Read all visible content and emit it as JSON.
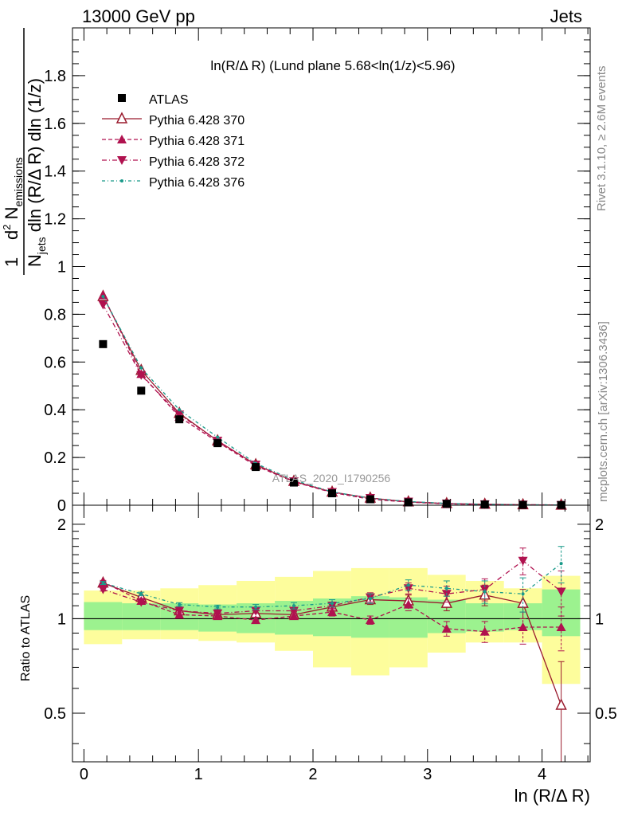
{
  "header": {
    "left": "13000 GeV pp",
    "right": "Jets"
  },
  "side_labels": {
    "rivet": "Rivet 3.1.10, ≥ 2.6M events",
    "mcplots": "mcplots.cern.ch [arXiv:1306.3436]"
  },
  "watermark": "ATLAS_2020_I1790256",
  "colors": {
    "atlas": "#000000",
    "p370": "#9a1b2e",
    "p371": "#b0124f",
    "p372": "#b0124f",
    "p376": "#1a9a8a",
    "band_outer": "#fdfd9c",
    "band_inner": "#9cf28f"
  },
  "chart_data": [
    {
      "type": "scatter",
      "panel": "main",
      "title": "ln(R/Δ R) (Lund plane 5.68<ln(1/z)<5.96)",
      "ylabel": "1/N_jets d² N_emissions / dln (R/Δ R) dln (1/z)",
      "xlim": [
        -0.1,
        4.42
      ],
      "ylim": [
        0,
        2.0
      ],
      "yticks": [
        0,
        0.2,
        0.4,
        0.6,
        0.8,
        1,
        1.2,
        1.4,
        1.6,
        1.8
      ],
      "ytick_labels": [
        "0",
        "0.2",
        "0.4",
        "0.6",
        "0.8",
        "1",
        "1.2",
        "1.4",
        "1.6",
        "1.8"
      ],
      "x": [
        0.167,
        0.5,
        0.833,
        1.167,
        1.5,
        1.833,
        2.167,
        2.5,
        2.833,
        3.167,
        3.5,
        3.833,
        4.167
      ],
      "legend_position": "top-left",
      "series": [
        {
          "name": "ATLAS",
          "marker": "square",
          "values": [
            0.675,
            0.48,
            0.36,
            0.26,
            0.16,
            0.095,
            0.05,
            0.025,
            0.012,
            0.006,
            0.003,
            0.0015,
            0.0008
          ]
        },
        {
          "name": "Pythia 6.428 370",
          "marker": "triangle-up-open",
          "line": "solid",
          "values": [
            0.875,
            0.565,
            0.385,
            0.27,
            0.17,
            0.1,
            0.055,
            0.03,
            0.014,
            0.007,
            0.004,
            0.002,
            0.0005
          ]
        },
        {
          "name": "Pythia 6.428 371",
          "marker": "triangle-up",
          "line": "dashed",
          "values": [
            0.88,
            0.55,
            0.37,
            0.265,
            0.165,
            0.098,
            0.053,
            0.025,
            0.013,
            0.0056,
            0.0027,
            0.0014,
            0.0008
          ]
        },
        {
          "name": "Pythia 6.428 372",
          "marker": "triangle-down",
          "line": "dashdot",
          "values": [
            0.84,
            0.545,
            0.38,
            0.27,
            0.17,
            0.1,
            0.055,
            0.03,
            0.015,
            0.0072,
            0.0037,
            0.0023,
            0.001
          ]
        },
        {
          "name": "Pythia 6.428 376",
          "marker": "dot",
          "line": "dashdotted",
          "values": [
            0.875,
            0.575,
            0.4,
            0.285,
            0.175,
            0.105,
            0.056,
            0.029,
            0.0155,
            0.0075,
            0.0037,
            0.0018,
            0.0012
          ]
        }
      ]
    },
    {
      "type": "scatter",
      "panel": "ratio",
      "ylabel": "Ratio to ATLAS",
      "xlabel": "ln (R/Δ R)",
      "xlim": [
        -0.1,
        4.42
      ],
      "ylim": [
        0.35,
        2.3
      ],
      "yticks": [
        0.5,
        1,
        2
      ],
      "ytick_labels": [
        "0.5",
        "1",
        "2"
      ],
      "xticks": [
        0,
        1,
        2,
        3,
        4
      ],
      "xtick_labels": [
        "0",
        "1",
        "2",
        "3",
        "4"
      ],
      "x": [
        0.167,
        0.5,
        0.833,
        1.167,
        1.5,
        1.833,
        2.167,
        2.5,
        2.833,
        3.167,
        3.5,
        3.833,
        4.167
      ],
      "bin_edges": [
        0,
        0.333,
        0.667,
        1.0,
        1.333,
        1.667,
        2.0,
        2.333,
        2.667,
        3.0,
        3.333,
        3.667,
        4.0,
        4.333
      ],
      "bands": {
        "inner": [
          [
            0.92,
            1.13
          ],
          [
            0.92,
            1.12
          ],
          [
            0.92,
            1.12
          ],
          [
            0.91,
            1.11
          ],
          [
            0.9,
            1.12
          ],
          [
            0.89,
            1.14
          ],
          [
            0.88,
            1.16
          ],
          [
            0.87,
            1.18
          ],
          [
            0.87,
            1.17
          ],
          [
            0.9,
            1.15
          ],
          [
            0.91,
            1.12
          ],
          [
            0.92,
            1.12
          ],
          [
            0.88,
            1.24
          ]
        ],
        "outer": [
          [
            0.83,
            1.23
          ],
          [
            0.86,
            1.23
          ],
          [
            0.86,
            1.25
          ],
          [
            0.85,
            1.28
          ],
          [
            0.84,
            1.32
          ],
          [
            0.79,
            1.36
          ],
          [
            0.7,
            1.42
          ],
          [
            0.66,
            1.45
          ],
          [
            0.7,
            1.45
          ],
          [
            0.78,
            1.38
          ],
          [
            0.84,
            1.32
          ],
          [
            0.84,
            1.25
          ],
          [
            0.62,
            1.37
          ]
        ]
      },
      "series": [
        {
          "name": "Pythia 6.428 370",
          "values": [
            1.3,
            1.17,
            1.06,
            1.03,
            1.04,
            1.03,
            1.09,
            1.15,
            1.14,
            1.12,
            1.19,
            1.12,
            0.53
          ],
          "errors": [
            0.015,
            0.015,
            0.015,
            0.015,
            0.02,
            0.025,
            0.03,
            0.04,
            0.05,
            0.06,
            0.09,
            0.12,
            0.2
          ]
        },
        {
          "name": "Pythia 6.428 371",
          "values": [
            1.31,
            1.14,
            1.03,
            1.02,
            0.99,
            1.02,
            1.05,
            0.99,
            1.11,
            0.93,
            0.91,
            0.94,
            0.94
          ],
          "errors": [
            0.015,
            0.015,
            0.015,
            0.015,
            0.02,
            0.025,
            0.03,
            0.03,
            0.05,
            0.05,
            0.07,
            0.11,
            0.15
          ]
        },
        {
          "name": "Pythia 6.428 372",
          "values": [
            1.24,
            1.13,
            1.06,
            1.04,
            1.06,
            1.06,
            1.1,
            1.17,
            1.25,
            1.2,
            1.24,
            1.53,
            1.22
          ],
          "errors": [
            0.015,
            0.015,
            0.015,
            0.015,
            0.02,
            0.025,
            0.03,
            0.04,
            0.05,
            0.07,
            0.1,
            0.15,
            0.2
          ]
        },
        {
          "name": "Pythia 6.428 376",
          "values": [
            1.3,
            1.2,
            1.11,
            1.09,
            1.09,
            1.1,
            1.12,
            1.16,
            1.28,
            1.25,
            1.22,
            1.2,
            1.5
          ],
          "errors": [
            0.015,
            0.015,
            0.015,
            0.015,
            0.02,
            0.025,
            0.03,
            0.04,
            0.05,
            0.07,
            0.1,
            0.15,
            0.2
          ]
        }
      ]
    }
  ]
}
